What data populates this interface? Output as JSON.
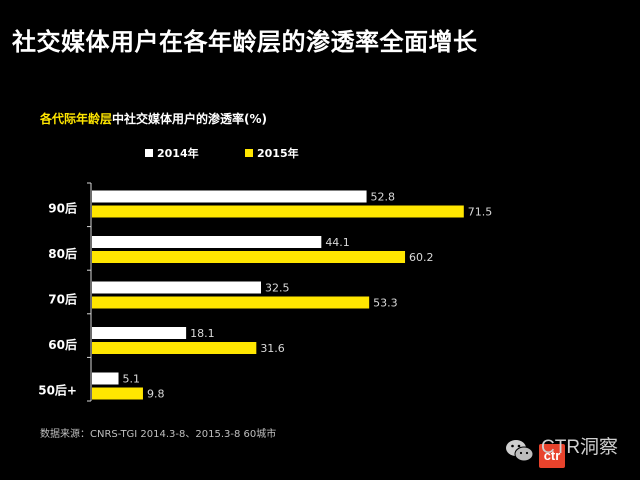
{
  "header": {
    "title": "社交媒体用户在各年龄层的渗透率全面增长"
  },
  "chart_data": {
    "type": "bar",
    "orientation": "horizontal",
    "title_highlight": "各代际年龄层",
    "title_rest": "中社交媒体用户的渗透率(%)",
    "categories": [
      "90后",
      "80后",
      "70后",
      "60后",
      "50后+"
    ],
    "series": [
      {
        "name": "2014年",
        "color": "#ffffff",
        "values": [
          52.8,
          44.1,
          32.5,
          18.1,
          5.1
        ]
      },
      {
        "name": "2015年",
        "color": "#ffe600",
        "values": [
          71.5,
          60.2,
          53.3,
          31.6,
          9.8
        ]
      }
    ],
    "xlim": [
      0,
      80
    ],
    "grid": false,
    "legend_position": "top"
  },
  "footer": {
    "source": "数据来源：CNRS-TGI 2014.3-8、2015.3-8 60城市"
  },
  "brand": {
    "logo_text": "ctr",
    "name": "CTR洞察",
    "icon": "wechat-icon"
  }
}
